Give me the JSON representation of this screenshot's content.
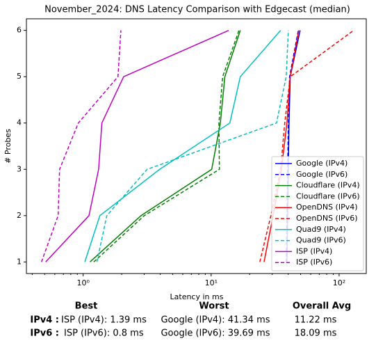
{
  "chart_data": {
    "type": "line",
    "title": "November_2024: DNS Latency Comparison with Edgecast (median)",
    "xlabel": "Latency in ms",
    "ylabel": "# Probes",
    "xscale": "log",
    "xlim": [
      0.36,
      163
    ],
    "ylim": [
      0.75,
      6.25
    ],
    "xticks": [
      {
        "value": 1,
        "label": "10⁰"
      },
      {
        "value": 10,
        "label": "10¹"
      },
      {
        "value": 100,
        "label": "10²"
      }
    ],
    "xminor_ticks": [
      0.4,
      0.5,
      0.6,
      0.7,
      0.8,
      0.9,
      2,
      3,
      4,
      5,
      6,
      7,
      8,
      9,
      20,
      30,
      40,
      50,
      60,
      70,
      80,
      90
    ],
    "yticks": [
      1,
      2,
      3,
      4,
      5,
      6
    ],
    "legend": "lower right",
    "series": [
      {
        "name": "Google (IPv4)",
        "color": "#0000ff",
        "linestyle": "solid",
        "x": [
          39.1,
          39.6,
          40.1,
          40.6,
          41.5,
          49.6
        ],
        "values": [
          1,
          2,
          3,
          4,
          5,
          6
        ]
      },
      {
        "name": "Google (IPv6)",
        "color": "#0000ff",
        "linestyle": "dashed",
        "x": [
          38.6,
          39.1,
          39.6,
          40.1,
          41.0,
          48.0
        ],
        "values": [
          1,
          2,
          3,
          4,
          5,
          6
        ]
      },
      {
        "name": "Cloudflare (IPv4)",
        "color": "#008000",
        "linestyle": "solid",
        "x": [
          1.13,
          2.83,
          10.1,
          11.8,
          12.8,
          16.9
        ],
        "values": [
          1,
          2,
          3,
          4,
          5,
          6
        ]
      },
      {
        "name": "Cloudflare (IPv6)",
        "color": "#008000",
        "linestyle": "dashed",
        "x": [
          1.21,
          3.0,
          11.6,
          11.5,
          12.3,
          16.5
        ],
        "values": [
          1,
          2,
          3,
          4,
          5,
          6
        ]
      },
      {
        "name": "OpenDNS (IPv4)",
        "color": "#ff0000",
        "linestyle": "solid",
        "x": [
          25.9,
          30.5,
          35.4,
          39.1,
          41.5,
          48.4
        ],
        "values": [
          1,
          2,
          3,
          4,
          5,
          6
        ]
      },
      {
        "name": "OpenDNS (IPv6)",
        "color": "#ff0000",
        "linestyle": "dashed",
        "x": [
          24.0,
          29.3,
          34.9,
          37.6,
          41.5,
          130
        ],
        "values": [
          1,
          2,
          3,
          4,
          5,
          6
        ]
      },
      {
        "name": "Quad9 (IPv4)",
        "color": "#00bfbf",
        "linestyle": "solid",
        "x": [
          1.03,
          1.35,
          3.96,
          14.0,
          16.9,
          34.9
        ],
        "values": [
          1,
          2,
          3,
          4,
          5,
          6
        ]
      },
      {
        "name": "Quad9 (IPv6)",
        "color": "#00bfbf",
        "linestyle": "dashed",
        "x": [
          1.28,
          1.53,
          3.16,
          32.4,
          38.6,
          40.1
        ],
        "values": [
          1,
          2,
          3,
          4,
          5,
          6
        ]
      },
      {
        "name": "ISP (IPv4)",
        "color": "#bf00bf",
        "linestyle": "solid",
        "x": [
          0.509,
          1.11,
          1.32,
          1.4,
          2.07,
          13.7
        ],
        "values": [
          1,
          2,
          3,
          4,
          5,
          6
        ]
      },
      {
        "name": "ISP (IPv6)",
        "color": "#bf00bf",
        "linestyle": "dashed",
        "x": [
          0.472,
          0.637,
          0.654,
          0.916,
          1.87,
          1.97
        ],
        "values": [
          1,
          2,
          3,
          4,
          5,
          6
        ]
      }
    ]
  },
  "summary": {
    "headers": [
      "Best",
      "Worst",
      "Overall Avg"
    ],
    "rows": [
      [
        "IPv4 :",
        "ISP (IPv4): 1.39 ms",
        "Google (IPv4): 41.34 ms",
        "11.22 ms"
      ],
      [
        "IPv6 :",
        "ISP (IPv6): 0.8 ms",
        "Google (IPv6): 39.69 ms",
        "18.09 ms"
      ]
    ]
  }
}
